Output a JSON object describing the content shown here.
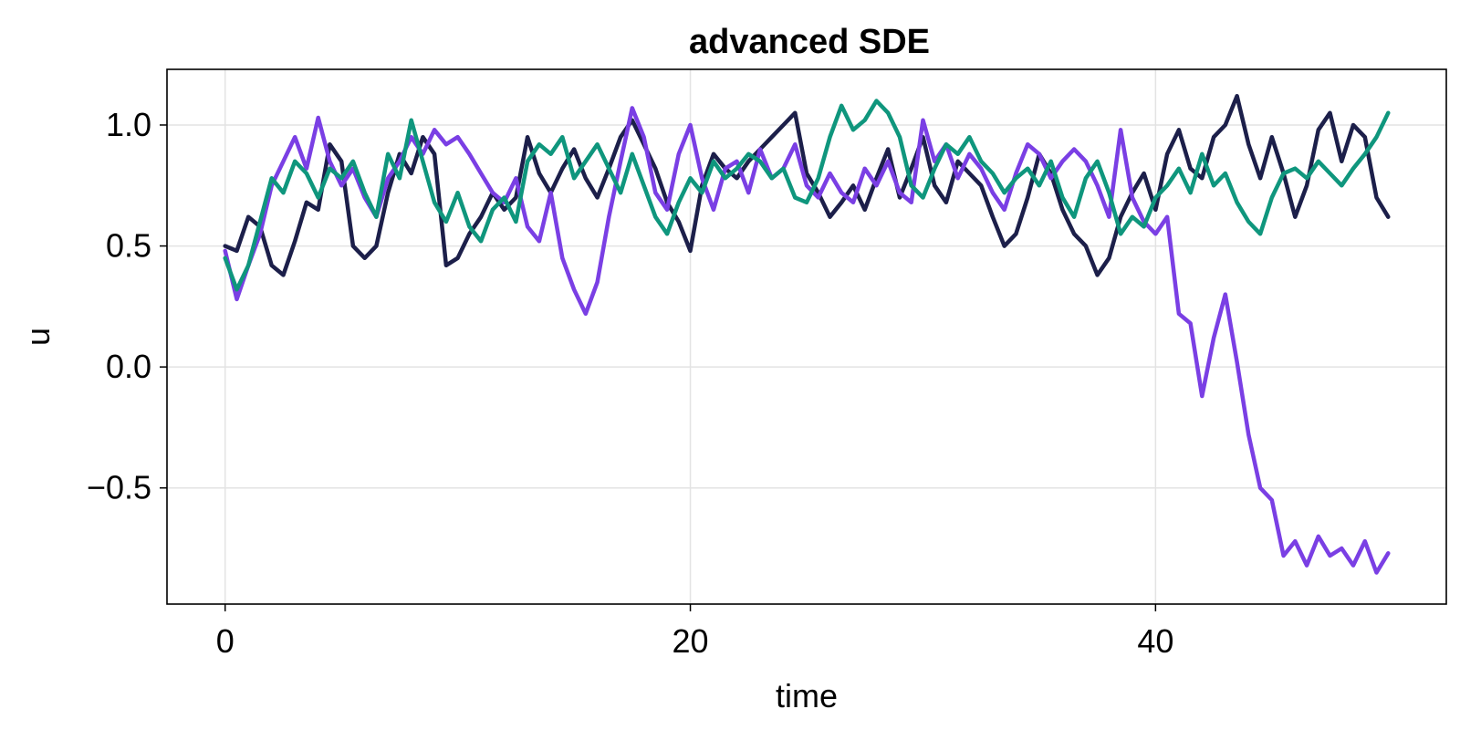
{
  "chart_data": {
    "type": "line",
    "title": "advanced SDE",
    "xlabel": "time",
    "ylabel": "u",
    "xlim": [
      -2.5,
      52.5
    ],
    "ylim": [
      -0.98,
      1.23
    ],
    "x_ticks": [
      0,
      20,
      40
    ],
    "x_tick_labels": [
      "0",
      "20",
      "40"
    ],
    "y_ticks": [
      -0.5,
      0.0,
      0.5,
      1.0
    ],
    "y_tick_labels": [
      "−0.5",
      "0.0",
      "0.5",
      "1.0"
    ],
    "grid": true,
    "legend": "none",
    "series": [
      {
        "color": "#1c1f4a",
        "points": [
          [
            0,
            0.5
          ],
          [
            0.5,
            0.48
          ],
          [
            1,
            0.62
          ],
          [
            1.5,
            0.58
          ],
          [
            2,
            0.42
          ],
          [
            2.5,
            0.38
          ],
          [
            3,
            0.52
          ],
          [
            3.5,
            0.68
          ],
          [
            4,
            0.65
          ],
          [
            4.5,
            0.92
          ],
          [
            5,
            0.85
          ],
          [
            5.5,
            0.5
          ],
          [
            6,
            0.45
          ],
          [
            6.5,
            0.5
          ],
          [
            7,
            0.72
          ],
          [
            7.5,
            0.88
          ],
          [
            8,
            0.8
          ],
          [
            8.5,
            0.95
          ],
          [
            9,
            0.88
          ],
          [
            9.5,
            0.42
          ],
          [
            10,
            0.45
          ],
          [
            10.5,
            0.55
          ],
          [
            11,
            0.62
          ],
          [
            11.5,
            0.72
          ],
          [
            12,
            0.65
          ],
          [
            12.5,
            0.7
          ],
          [
            13,
            0.95
          ],
          [
            13.5,
            0.8
          ],
          [
            14,
            0.72
          ],
          [
            14.5,
            0.82
          ],
          [
            15,
            0.9
          ],
          [
            15.5,
            0.78
          ],
          [
            16,
            0.7
          ],
          [
            16.5,
            0.82
          ],
          [
            17,
            0.95
          ],
          [
            17.5,
            1.02
          ],
          [
            18,
            0.92
          ],
          [
            18.5,
            0.82
          ],
          [
            19,
            0.68
          ],
          [
            19.5,
            0.6
          ],
          [
            20,
            0.48
          ],
          [
            20.5,
            0.75
          ],
          [
            21,
            0.88
          ],
          [
            21.5,
            0.82
          ],
          [
            22,
            0.78
          ],
          [
            22.5,
            0.85
          ],
          [
            23,
            0.9
          ],
          [
            23.5,
            0.95
          ],
          [
            24,
            1.0
          ],
          [
            24.5,
            1.05
          ],
          [
            25,
            0.8
          ],
          [
            25.5,
            0.72
          ],
          [
            26,
            0.62
          ],
          [
            26.5,
            0.68
          ],
          [
            27,
            0.75
          ],
          [
            27.5,
            0.65
          ],
          [
            28,
            0.78
          ],
          [
            28.5,
            0.9
          ],
          [
            29,
            0.7
          ],
          [
            29.5,
            0.82
          ],
          [
            30,
            0.95
          ],
          [
            30.5,
            0.75
          ],
          [
            31,
            0.68
          ],
          [
            31.5,
            0.85
          ],
          [
            32,
            0.8
          ],
          [
            32.5,
            0.75
          ],
          [
            33,
            0.62
          ],
          [
            33.5,
            0.5
          ],
          [
            34,
            0.55
          ],
          [
            34.5,
            0.7
          ],
          [
            35,
            0.88
          ],
          [
            35.5,
            0.8
          ],
          [
            36,
            0.65
          ],
          [
            36.5,
            0.55
          ],
          [
            37,
            0.5
          ],
          [
            37.5,
            0.38
          ],
          [
            38,
            0.45
          ],
          [
            38.5,
            0.62
          ],
          [
            39,
            0.72
          ],
          [
            39.5,
            0.8
          ],
          [
            40,
            0.65
          ],
          [
            40.5,
            0.88
          ],
          [
            41,
            0.98
          ],
          [
            41.5,
            0.82
          ],
          [
            42,
            0.78
          ],
          [
            42.5,
            0.95
          ],
          [
            43,
            1.0
          ],
          [
            43.5,
            1.12
          ],
          [
            44,
            0.92
          ],
          [
            44.5,
            0.78
          ],
          [
            45,
            0.95
          ],
          [
            45.5,
            0.8
          ],
          [
            46,
            0.62
          ],
          [
            46.5,
            0.75
          ],
          [
            47,
            0.98
          ],
          [
            47.5,
            1.05
          ],
          [
            48,
            0.85
          ],
          [
            48.5,
            1.0
          ],
          [
            49,
            0.95
          ],
          [
            49.5,
            0.7
          ],
          [
            50,
            0.62
          ]
        ]
      },
      {
        "color": "#7a3fe4",
        "points": [
          [
            0,
            0.48
          ],
          [
            0.5,
            0.28
          ],
          [
            1,
            0.42
          ],
          [
            1.5,
            0.55
          ],
          [
            2,
            0.75
          ],
          [
            2.5,
            0.85
          ],
          [
            3,
            0.95
          ],
          [
            3.5,
            0.82
          ],
          [
            4,
            1.03
          ],
          [
            4.5,
            0.85
          ],
          [
            5,
            0.75
          ],
          [
            5.5,
            0.82
          ],
          [
            6,
            0.7
          ],
          [
            6.5,
            0.62
          ],
          [
            7,
            0.78
          ],
          [
            7.5,
            0.85
          ],
          [
            8,
            0.95
          ],
          [
            8.5,
            0.88
          ],
          [
            9,
            0.98
          ],
          [
            9.5,
            0.92
          ],
          [
            10,
            0.95
          ],
          [
            10.5,
            0.88
          ],
          [
            11,
            0.8
          ],
          [
            11.5,
            0.72
          ],
          [
            12,
            0.68
          ],
          [
            12.5,
            0.78
          ],
          [
            13,
            0.58
          ],
          [
            13.5,
            0.52
          ],
          [
            14,
            0.72
          ],
          [
            14.5,
            0.45
          ],
          [
            15,
            0.32
          ],
          [
            15.5,
            0.22
          ],
          [
            16,
            0.35
          ],
          [
            16.5,
            0.62
          ],
          [
            17,
            0.85
          ],
          [
            17.5,
            1.07
          ],
          [
            18,
            0.95
          ],
          [
            18.5,
            0.72
          ],
          [
            19,
            0.65
          ],
          [
            19.5,
            0.88
          ],
          [
            20,
            1.0
          ],
          [
            20.5,
            0.78
          ],
          [
            21,
            0.65
          ],
          [
            21.5,
            0.82
          ],
          [
            22,
            0.85
          ],
          [
            22.5,
            0.72
          ],
          [
            23,
            0.9
          ],
          [
            23.5,
            0.78
          ],
          [
            24,
            0.82
          ],
          [
            24.5,
            0.92
          ],
          [
            25,
            0.75
          ],
          [
            25.5,
            0.7
          ],
          [
            26,
            0.8
          ],
          [
            26.5,
            0.72
          ],
          [
            27,
            0.68
          ],
          [
            27.5,
            0.82
          ],
          [
            28,
            0.75
          ],
          [
            28.5,
            0.85
          ],
          [
            29,
            0.72
          ],
          [
            29.5,
            0.68
          ],
          [
            30,
            1.02
          ],
          [
            30.5,
            0.85
          ],
          [
            31,
            0.92
          ],
          [
            31.5,
            0.78
          ],
          [
            32,
            0.88
          ],
          [
            32.5,
            0.82
          ],
          [
            33,
            0.72
          ],
          [
            33.5,
            0.65
          ],
          [
            34,
            0.8
          ],
          [
            34.5,
            0.92
          ],
          [
            35,
            0.88
          ],
          [
            35.5,
            0.78
          ],
          [
            36,
            0.85
          ],
          [
            36.5,
            0.9
          ],
          [
            37,
            0.85
          ],
          [
            37.5,
            0.75
          ],
          [
            38,
            0.62
          ],
          [
            38.5,
            0.98
          ],
          [
            39,
            0.7
          ],
          [
            39.5,
            0.6
          ],
          [
            40,
            0.55
          ],
          [
            40.5,
            0.62
          ],
          [
            41,
            0.22
          ],
          [
            41.5,
            0.18
          ],
          [
            42,
            -0.12
          ],
          [
            42.5,
            0.12
          ],
          [
            43,
            0.3
          ],
          [
            43.5,
            0.02
          ],
          [
            44,
            -0.28
          ],
          [
            44.5,
            -0.5
          ],
          [
            45,
            -0.55
          ],
          [
            45.5,
            -0.78
          ],
          [
            46,
            -0.72
          ],
          [
            46.5,
            -0.82
          ],
          [
            47,
            -0.7
          ],
          [
            47.5,
            -0.78
          ],
          [
            48,
            -0.75
          ],
          [
            48.5,
            -0.82
          ],
          [
            49,
            -0.72
          ],
          [
            49.5,
            -0.85
          ],
          [
            50,
            -0.77
          ]
        ]
      },
      {
        "color": "#0f967d",
        "points": [
          [
            0,
            0.45
          ],
          [
            0.5,
            0.32
          ],
          [
            1,
            0.42
          ],
          [
            1.5,
            0.6
          ],
          [
            2,
            0.78
          ],
          [
            2.5,
            0.72
          ],
          [
            3,
            0.85
          ],
          [
            3.5,
            0.8
          ],
          [
            4,
            0.7
          ],
          [
            4.5,
            0.82
          ],
          [
            5,
            0.78
          ],
          [
            5.5,
            0.85
          ],
          [
            6,
            0.72
          ],
          [
            6.5,
            0.62
          ],
          [
            7,
            0.88
          ],
          [
            7.5,
            0.78
          ],
          [
            8,
            1.02
          ],
          [
            8.5,
            0.85
          ],
          [
            9,
            0.68
          ],
          [
            9.5,
            0.6
          ],
          [
            10,
            0.72
          ],
          [
            10.5,
            0.58
          ],
          [
            11,
            0.52
          ],
          [
            11.5,
            0.65
          ],
          [
            12,
            0.7
          ],
          [
            12.5,
            0.6
          ],
          [
            13,
            0.85
          ],
          [
            13.5,
            0.92
          ],
          [
            14,
            0.88
          ],
          [
            14.5,
            0.95
          ],
          [
            15,
            0.78
          ],
          [
            15.5,
            0.85
          ],
          [
            16,
            0.92
          ],
          [
            16.5,
            0.82
          ],
          [
            17,
            0.72
          ],
          [
            17.5,
            0.88
          ],
          [
            18,
            0.75
          ],
          [
            18.5,
            0.62
          ],
          [
            19,
            0.55
          ],
          [
            19.5,
            0.68
          ],
          [
            20,
            0.78
          ],
          [
            20.5,
            0.72
          ],
          [
            21,
            0.85
          ],
          [
            21.5,
            0.78
          ],
          [
            22,
            0.82
          ],
          [
            22.5,
            0.88
          ],
          [
            23,
            0.85
          ],
          [
            23.5,
            0.78
          ],
          [
            24,
            0.82
          ],
          [
            24.5,
            0.7
          ],
          [
            25,
            0.68
          ],
          [
            25.5,
            0.78
          ],
          [
            26,
            0.95
          ],
          [
            26.5,
            1.08
          ],
          [
            27,
            0.98
          ],
          [
            27.5,
            1.02
          ],
          [
            28,
            1.1
          ],
          [
            28.5,
            1.05
          ],
          [
            29,
            0.95
          ],
          [
            29.5,
            0.75
          ],
          [
            30,
            0.7
          ],
          [
            30.5,
            0.82
          ],
          [
            31,
            0.92
          ],
          [
            31.5,
            0.88
          ],
          [
            32,
            0.95
          ],
          [
            32.5,
            0.85
          ],
          [
            33,
            0.8
          ],
          [
            33.5,
            0.72
          ],
          [
            34,
            0.78
          ],
          [
            34.5,
            0.82
          ],
          [
            35,
            0.75
          ],
          [
            35.5,
            0.85
          ],
          [
            36,
            0.7
          ],
          [
            36.5,
            0.62
          ],
          [
            37,
            0.78
          ],
          [
            37.5,
            0.85
          ],
          [
            38,
            0.72
          ],
          [
            38.5,
            0.55
          ],
          [
            39,
            0.62
          ],
          [
            39.5,
            0.58
          ],
          [
            40,
            0.7
          ],
          [
            40.5,
            0.75
          ],
          [
            41,
            0.82
          ],
          [
            41.5,
            0.72
          ],
          [
            42,
            0.88
          ],
          [
            42.5,
            0.75
          ],
          [
            43,
            0.8
          ],
          [
            43.5,
            0.68
          ],
          [
            44,
            0.6
          ],
          [
            44.5,
            0.55
          ],
          [
            45,
            0.7
          ],
          [
            45.5,
            0.8
          ],
          [
            46,
            0.82
          ],
          [
            46.5,
            0.78
          ],
          [
            47,
            0.85
          ],
          [
            47.5,
            0.8
          ],
          [
            48,
            0.75
          ],
          [
            48.5,
            0.82
          ],
          [
            49,
            0.88
          ],
          [
            49.5,
            0.95
          ],
          [
            50,
            1.05
          ]
        ]
      }
    ]
  }
}
